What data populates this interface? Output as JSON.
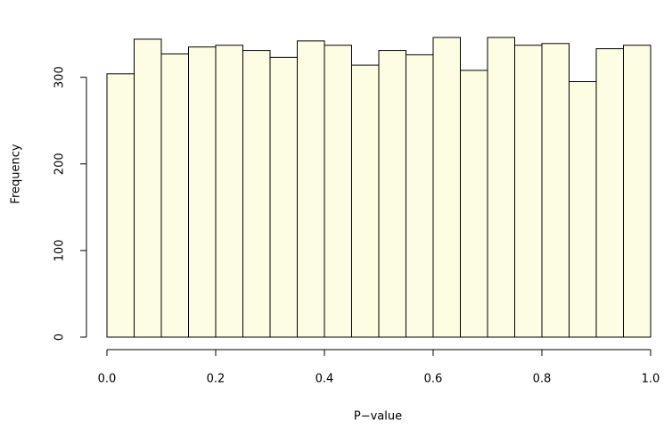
{
  "chart_data": {
    "type": "histogram",
    "x_label": "P−value",
    "y_label": "Frequency",
    "bins": [
      0,
      0.05,
      0.1,
      0.15,
      0.2,
      0.25,
      0.3,
      0.35,
      0.4,
      0.45,
      0.5,
      0.55,
      0.6,
      0.65,
      0.7,
      0.75,
      0.8,
      0.85,
      0.9,
      0.95,
      1
    ],
    "values": [
      304,
      344,
      327,
      335,
      337,
      331,
      323,
      342,
      337,
      314,
      331,
      326,
      346,
      308,
      346,
      337,
      339,
      295,
      333,
      337
    ],
    "color": "#fcfde2",
    "xlim": [
      0,
      1
    ],
    "xticks": [
      {
        "value": 0,
        "label": "0.0"
      },
      0.2,
      0.4,
      0.6,
      0.8,
      {
        "value": 1,
        "label": "1.0"
      }
    ],
    "ylim": [
      0,
      346
    ],
    "yticks": [
      0,
      100,
      200,
      300
    ]
  }
}
